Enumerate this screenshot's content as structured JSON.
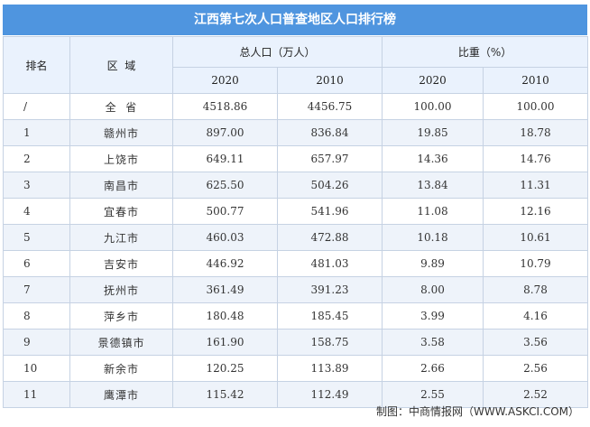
{
  "title": "江西第七次人口普查地区人口排行榜",
  "headers": {
    "rank": "排名",
    "region": "区  域",
    "population": "总人口（万人）",
    "share": "比重（%）",
    "year2020": "2020",
    "year2010": "2010"
  },
  "rows": [
    {
      "rank": "/",
      "region": "全  省",
      "pop2020": "4518.86",
      "pop2010": "4456.75",
      "share2020": "100.00",
      "share2010": "100.00"
    },
    {
      "rank": "1",
      "region": "赣州市",
      "pop2020": "897.00",
      "pop2010": "836.84",
      "share2020": "19.85",
      "share2010": "18.78"
    },
    {
      "rank": "2",
      "region": "上饶市",
      "pop2020": "649.11",
      "pop2010": "657.97",
      "share2020": "14.36",
      "share2010": "14.76"
    },
    {
      "rank": "3",
      "region": "南昌市",
      "pop2020": "625.50",
      "pop2010": "504.26",
      "share2020": "13.84",
      "share2010": "11.31"
    },
    {
      "rank": "4",
      "region": "宜春市",
      "pop2020": "500.77",
      "pop2010": "541.96",
      "share2020": "11.08",
      "share2010": "12.16"
    },
    {
      "rank": "5",
      "region": "九江市",
      "pop2020": "460.03",
      "pop2010": "472.88",
      "share2020": "10.18",
      "share2010": "10.61"
    },
    {
      "rank": "6",
      "region": "吉安市",
      "pop2020": "446.92",
      "pop2010": "481.03",
      "share2020": "9.89",
      "share2010": "10.79"
    },
    {
      "rank": "7",
      "region": "抚州市",
      "pop2020": "361.49",
      "pop2010": "391.23",
      "share2020": "8.00",
      "share2010": "8.78"
    },
    {
      "rank": "8",
      "region": "萍乡市",
      "pop2020": "180.48",
      "pop2010": "185.45",
      "share2020": "3.99",
      "share2010": "4.16"
    },
    {
      "rank": "9",
      "region": "景德镇市",
      "pop2020": "161.90",
      "pop2010": "158.75",
      "share2020": "3.58",
      "share2010": "3.56"
    },
    {
      "rank": "10",
      "region": "新余市",
      "pop2020": "120.25",
      "pop2010": "113.89",
      "share2020": "2.66",
      "share2010": "2.56"
    },
    {
      "rank": "11",
      "region": "鹰潭市",
      "pop2020": "115.42",
      "pop2010": "112.49",
      "share2020": "2.55",
      "share2010": "2.52"
    }
  ],
  "footer": "制图：中商情报网（WWW.ASKCI.COM）",
  "colors": {
    "title_bg": "#4f95df",
    "header_bg": "#eaf2fd",
    "stripe_bg": "#eef3fa",
    "border": "#c6d2e3"
  }
}
